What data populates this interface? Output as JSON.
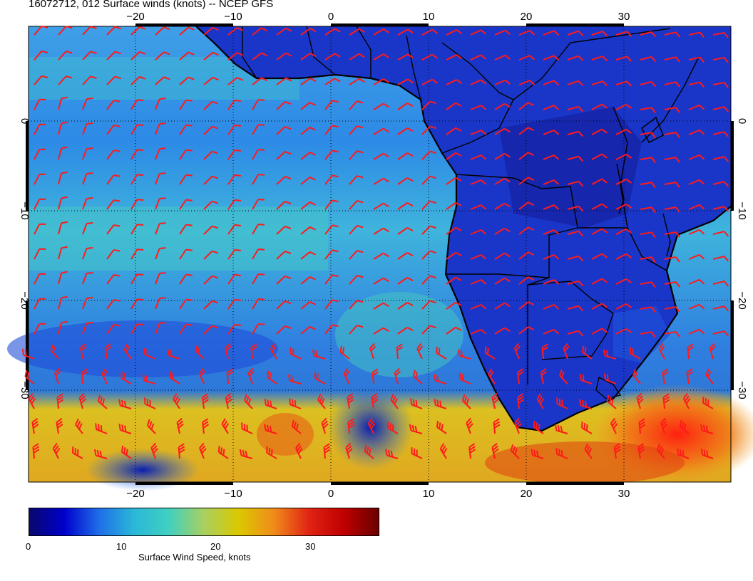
{
  "title": "16072712, 012 Surface winds (knots) -- NCEP GFS",
  "map": {
    "lon_range": [
      -30,
      40
    ],
    "lat_range": [
      -40,
      10
    ],
    "lon_ticks": [
      "−20",
      "−10",
      "0",
      "10",
      "20",
      "30"
    ],
    "lat_ticks": [
      "0",
      "−10",
      "−20",
      "−30"
    ],
    "graticule": "dotted",
    "barb_color": "#ff1a1a"
  },
  "colorbar": {
    "label": "Surface Wind Speed, knots",
    "ticks": [
      "0",
      "10",
      "20",
      "30"
    ],
    "range": [
      0,
      37
    ],
    "colors": [
      "#08086e",
      "#0000cc",
      "#1f6fe8",
      "#2ab8d8",
      "#41d0c0",
      "#a8d060",
      "#dcc800",
      "#f08c1a",
      "#e02414",
      "#bf0000",
      "#6a0000"
    ]
  }
}
